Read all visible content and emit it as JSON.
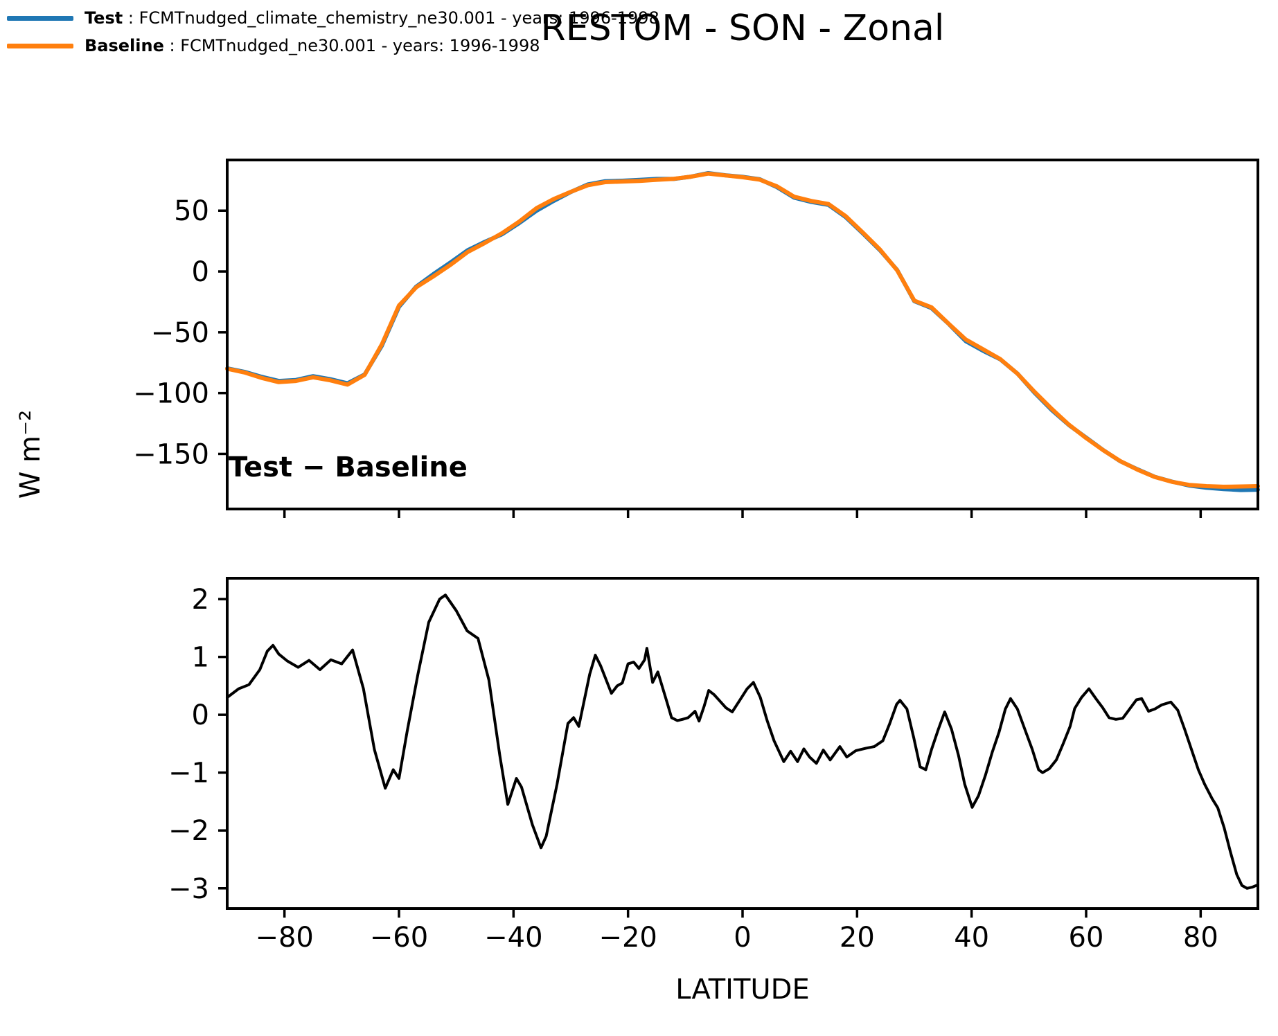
{
  "title": "RESTOM - SON - Zonal",
  "ylabel": "W m⁻²",
  "xlabel": "LATITUDE",
  "diff_panel_title": "Test − Baseline",
  "legend": {
    "separator": " : ",
    "items": [
      {
        "name": "Test",
        "desc": "FCMTnudged_climate_chemistry_ne30.001 - years: 1996-1998",
        "color": "#1f77b4"
      },
      {
        "name": "Baseline",
        "desc": "FCMTnudged_ne30.001 - years: 1996-1998",
        "color": "#ff7f0e"
      }
    ]
  },
  "colors": {
    "test": "#1f77b4",
    "baseline": "#ff7f0e",
    "diff": "#000000",
    "axis": "#000000"
  },
  "chart_data": [
    {
      "type": "line",
      "panel": "main",
      "title": "RESTOM - SON - Zonal",
      "xlabel": "",
      "ylabel": "W m⁻²",
      "xlim": [
        -90,
        90
      ],
      "ylim": [
        -195.3,
        91.7
      ],
      "xticks": [
        -80,
        -60,
        -40,
        -20,
        0,
        20,
        40,
        60,
        80
      ],
      "xticklabels": false,
      "yticks": [
        50,
        0,
        -50,
        -100,
        -150
      ],
      "grid": false,
      "legend_position": "figure upper left",
      "x": [
        -90,
        -87,
        -84,
        -81,
        -78,
        -75,
        -72,
        -69,
        -66,
        -63,
        -60,
        -57,
        -54,
        -51,
        -48,
        -45,
        -42,
        -39,
        -36,
        -33,
        -30,
        -27,
        -24,
        -21,
        -18,
        -15,
        -12,
        -9,
        -6,
        -3,
        0,
        3,
        6,
        9,
        12,
        15,
        18,
        21,
        24,
        27,
        30,
        33,
        36,
        39,
        42,
        45,
        48,
        51,
        54,
        57,
        60,
        63,
        66,
        69,
        72,
        75,
        78,
        81,
        84,
        87,
        90
      ],
      "series": [
        {
          "name": "Test",
          "color": "#1f77b4",
          "values": [
            -79.7,
            -82.5,
            -86.6,
            -90,
            -89.2,
            -86.1,
            -88.6,
            -92,
            -84.7,
            -61.1,
            -29.1,
            -12.5,
            -2.2,
            7.4,
            17.5,
            24.4,
            30.6,
            39.8,
            49.9,
            58,
            65.4,
            71.6,
            74.2,
            74.6,
            75.3,
            76.1,
            76.1,
            78,
            80.9,
            79.1,
            77.8,
            75.8,
            69.4,
            60.8,
            57.2,
            54.8,
            44.8,
            31.4,
            17.5,
            1.2,
            -24.4,
            -30.1,
            -43.1,
            -57.3,
            -65.2,
            -72.2,
            -83.9,
            -99.7,
            -113.9,
            -126.3,
            -136.6,
            -146.9,
            -156.1,
            -162.7,
            -168.9,
            -172.8,
            -176,
            -177.8,
            -178.9,
            -179.7,
            -179.4
          ]
        },
        {
          "name": "Baseline",
          "color": "#ff7f0e",
          "values": [
            -80,
            -83,
            -87.5,
            -91,
            -90,
            -87,
            -89.5,
            -93,
            -85,
            -60,
            -28,
            -13,
            -4,
            5.5,
            16,
            23.5,
            31.5,
            41,
            52,
            59.5,
            65.5,
            71,
            73.5,
            74,
            74.5,
            75.4,
            76.2,
            78,
            80.5,
            79,
            77.5,
            75.5,
            70,
            61.5,
            58,
            55.5,
            45.5,
            32,
            18,
            1,
            -24,
            -29.5,
            -43,
            -56,
            -64,
            -72,
            -84,
            -99,
            -113,
            -126,
            -137,
            -147,
            -156,
            -163,
            -169,
            -173,
            -175.5,
            -176.5,
            -177,
            -176.8,
            -176.5
          ]
        }
      ]
    },
    {
      "type": "line",
      "panel": "difference",
      "title": "Test − Baseline",
      "xlabel": "LATITUDE",
      "ylabel": "W m⁻²",
      "xlim": [
        -90,
        90
      ],
      "ylim": [
        -3.35,
        2.36
      ],
      "xticks": [
        -80,
        -60,
        -40,
        -20,
        0,
        20,
        40,
        60,
        80
      ],
      "xticklabels": true,
      "yticks": [
        2,
        1,
        0,
        -1,
        -2,
        -3
      ],
      "grid": false,
      "x": [
        -90,
        -88,
        -86.2,
        -84.3,
        -83,
        -82,
        -81,
        -79.5,
        -77.6,
        -75.7,
        -73.8,
        -71.9,
        -70,
        -68.1,
        -66.2,
        -64.3,
        -62.4,
        -61,
        -60,
        -58.6,
        -56.7,
        -54.8,
        -52.9,
        -51.9,
        -50,
        -48.1,
        -46.2,
        -44.3,
        -42.4,
        -41,
        -39.5,
        -38.6,
        -36.7,
        -35.2,
        -34.3,
        -32.4,
        -30.5,
        -29.5,
        -28.6,
        -26.7,
        -25.7,
        -24.8,
        -22.9,
        -21.9,
        -21,
        -20,
        -19,
        -18.1,
        -17.1,
        -16.7,
        -15.7,
        -14.8,
        -13.3,
        -12.4,
        -11.4,
        -10.5,
        -9.5,
        -8.3,
        -7.6,
        -6.7,
        -5.9,
        -5,
        -3.8,
        -2.9,
        -1.8,
        -0.5,
        0.8,
        1.9,
        3.1,
        4.3,
        5.5,
        7.2,
        8.4,
        9.6,
        10.7,
        11.7,
        12.9,
        14.1,
        15.3,
        17,
        18.2,
        19.8,
        21.5,
        23,
        24.5,
        25.7,
        26.9,
        27.5,
        28.7,
        29.9,
        31,
        32,
        33,
        34.2,
        35.3,
        36.5,
        37.7,
        38.8,
        40.1,
        41.2,
        42.4,
        43.6,
        44.8,
        45.9,
        46.8,
        48,
        49.4,
        50.6,
        51.7,
        52.4,
        53.6,
        54.8,
        56,
        57.2,
        58,
        59.2,
        60.5,
        61.7,
        62.9,
        64,
        65.2,
        66.4,
        67.6,
        68.8,
        69.7,
        70.9,
        72,
        73.2,
        74.8,
        76,
        77.2,
        78.4,
        79.6,
        80.7,
        82,
        83,
        84.1,
        85.2,
        86.3,
        87.2,
        88.1,
        89,
        90
      ],
      "series": [
        {
          "name": "Test − Baseline",
          "color": "#000000",
          "values": [
            0.3,
            0.45,
            0.52,
            0.78,
            1.1,
            1.2,
            1.05,
            0.93,
            0.82,
            0.94,
            0.78,
            0.95,
            0.88,
            1.12,
            0.45,
            -0.6,
            -1.27,
            -0.95,
            -1.1,
            -0.3,
            0.7,
            1.6,
            2.0,
            2.07,
            1.8,
            1.45,
            1.32,
            0.6,
            -0.7,
            -1.55,
            -1.1,
            -1.25,
            -1.9,
            -2.3,
            -2.1,
            -1.2,
            -0.15,
            -0.05,
            -0.2,
            0.7,
            1.03,
            0.85,
            0.37,
            0.5,
            0.55,
            0.88,
            0.91,
            0.8,
            0.95,
            1.15,
            0.56,
            0.74,
            0.25,
            -0.05,
            -0.1,
            -0.08,
            -0.05,
            0.06,
            -0.11,
            0.15,
            0.42,
            0.35,
            0.22,
            0.12,
            0.05,
            0.25,
            0.45,
            0.56,
            0.3,
            -0.1,
            -0.45,
            -0.81,
            -0.63,
            -0.81,
            -0.59,
            -0.73,
            -0.84,
            -0.61,
            -0.78,
            -0.55,
            -0.73,
            -0.62,
            -0.58,
            -0.55,
            -0.45,
            -0.15,
            0.18,
            0.25,
            0.1,
            -0.4,
            -0.9,
            -0.95,
            -0.6,
            -0.25,
            0.05,
            -0.25,
            -0.7,
            -1.2,
            -1.6,
            -1.4,
            -1.05,
            -0.65,
            -0.3,
            0.1,
            0.28,
            0.1,
            -0.28,
            -0.6,
            -0.95,
            -1.0,
            -0.93,
            -0.78,
            -0.5,
            -0.2,
            0.11,
            0.3,
            0.45,
            0.28,
            0.12,
            -0.05,
            -0.08,
            -0.06,
            0.1,
            0.26,
            0.28,
            0.06,
            0.1,
            0.17,
            0.22,
            0.08,
            -0.25,
            -0.6,
            -0.95,
            -1.2,
            -1.45,
            -1.61,
            -1.95,
            -2.37,
            -2.76,
            -2.95,
            -3.0,
            -2.98,
            -2.94
          ]
        }
      ]
    }
  ]
}
